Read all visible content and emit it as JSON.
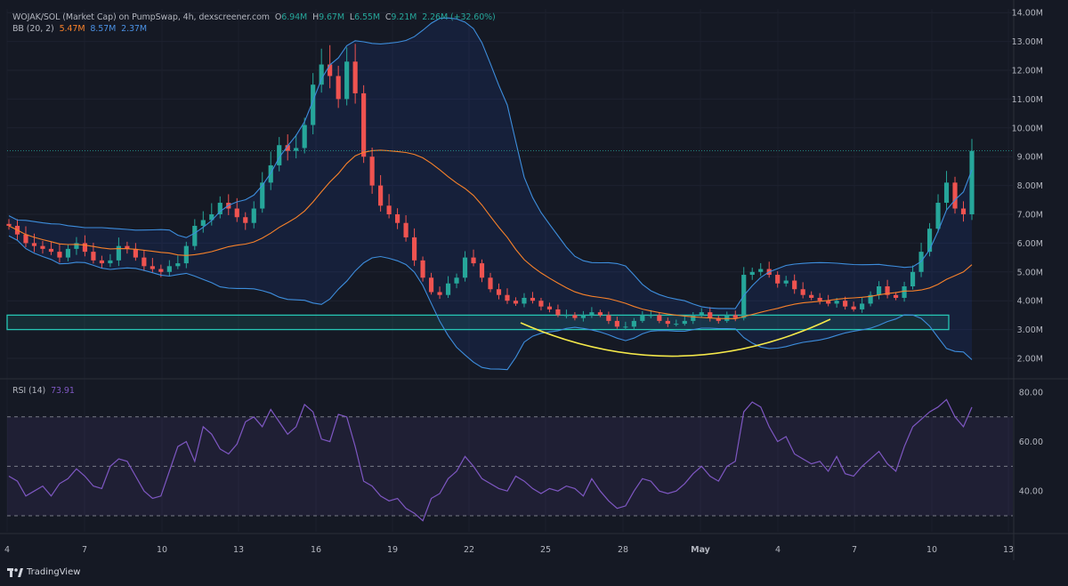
{
  "header": {
    "symbol": "WOJAK/SOL (Market Cap) on PumpSwap, 4h, dexscreener.com",
    "o_label": "O",
    "o_value": "6.94M",
    "h_label": "H",
    "h_value": "9.67M",
    "l_label": "L",
    "l_value": "6.55M",
    "c_label": "C",
    "c_value": "9.21M",
    "change": "2.26M (+32.60%)",
    "bb_label": "BB (20, 2)",
    "bb_basis": "5.47M",
    "bb_upper": "8.57M",
    "bb_lower": "2.37M",
    "rsi_label": "RSI (14)",
    "rsi_value": "73.91"
  },
  "brand": "TradingView",
  "colors": {
    "up": "#26a69a",
    "down": "#ef5350",
    "basis": "#f7812a",
    "band": "#3d8ddc",
    "rsi": "#7e57c2",
    "zone": "#26c6b4",
    "arc": "#f5e94a"
  },
  "chart_data": [
    {
      "type": "candlestick",
      "title": "WOJAK/SOL (Market Cap) on PumpSwap, 4h, dexscreener.com",
      "y_ticks": [
        "2.00M",
        "3.00M",
        "4.00M",
        "5.00M",
        "6.00M",
        "7.00M",
        "8.00M",
        "9.00M",
        "10.00M",
        "11.00M",
        "12.00M",
        "13.00M",
        "14.00M"
      ],
      "x_ticks": [
        "4",
        "7",
        "10",
        "13",
        "16",
        "19",
        "22",
        "25",
        "28",
        "May",
        "4",
        "7",
        "10",
        "13"
      ],
      "ylim": [
        1.5,
        14.0
      ],
      "price_line": 9.21,
      "support_zone": [
        3.0,
        3.5
      ],
      "series": [
        {
          "name": "Close (M)",
          "values": [
            6.6,
            6.3,
            6.0,
            5.9,
            5.8,
            5.7,
            5.5,
            5.8,
            6.0,
            5.7,
            5.4,
            5.3,
            5.4,
            5.9,
            5.8,
            5.5,
            5.2,
            5.1,
            5.0,
            5.2,
            5.3,
            5.9,
            6.6,
            6.8,
            7.0,
            7.4,
            7.2,
            6.9,
            6.7,
            7.2,
            8.1,
            8.7,
            9.4,
            9.2,
            9.3,
            10.1,
            11.5,
            12.2,
            11.8,
            11.0,
            12.3,
            11.2,
            9.0,
            8.0,
            7.3,
            7.0,
            6.7,
            6.2,
            5.4,
            4.8,
            4.3,
            4.2,
            4.6,
            4.8,
            5.5,
            5.3,
            4.8,
            4.4,
            4.2,
            4.0,
            3.9,
            4.1,
            4.0,
            3.8,
            3.7,
            3.5,
            3.5,
            3.4,
            3.5,
            3.6,
            3.5,
            3.3,
            3.1,
            3.1,
            3.3,
            3.5,
            3.5,
            3.3,
            3.2,
            3.2,
            3.3,
            3.5,
            3.6,
            3.4,
            3.3,
            3.5,
            3.4,
            4.9,
            5.0,
            5.1,
            4.9,
            4.6,
            4.7,
            4.4,
            4.2,
            4.1,
            4.0,
            3.9,
            4.0,
            3.8,
            3.7,
            3.9,
            4.2,
            4.5,
            4.2,
            4.1,
            4.5,
            5.0,
            5.7,
            6.5,
            7.4,
            8.1,
            7.2,
            7.0,
            9.2
          ]
        },
        {
          "name": "BB (20, 2)",
          "values": [
            5.47,
            8.57,
            2.37
          ]
        }
      ]
    },
    {
      "type": "line",
      "title": "RSI (14)",
      "y_ticks": [
        "40.00",
        "60.00",
        "80.00"
      ],
      "ylim": [
        25,
        82
      ],
      "bands": [
        30,
        50,
        70
      ],
      "series": [
        {
          "name": "RSI (14)",
          "values": [
            46,
            44,
            38,
            40,
            42,
            38,
            43,
            45,
            49,
            46,
            42,
            41,
            50,
            53,
            52,
            46,
            40,
            37,
            38,
            48,
            58,
            60,
            52,
            66,
            63,
            57,
            55,
            59,
            68,
            70,
            66,
            73,
            68,
            63,
            66,
            75,
            72,
            61,
            60,
            71,
            70,
            58,
            44,
            42,
            38,
            36,
            37,
            33,
            31,
            28,
            37,
            39,
            45,
            48,
            54,
            50,
            45,
            43,
            41,
            40,
            46,
            44,
            41,
            39,
            41,
            40,
            42,
            41,
            38,
            45,
            40,
            36,
            33,
            34,
            40,
            45,
            44,
            40,
            39,
            40,
            43,
            47,
            50,
            46,
            44,
            50,
            52,
            72,
            76,
            74,
            66,
            60,
            62,
            55,
            53,
            51,
            52,
            48,
            54,
            47,
            46,
            50,
            53,
            56,
            51,
            48,
            58,
            66,
            69,
            72,
            74,
            77,
            70,
            66,
            73.91
          ]
        }
      ]
    }
  ]
}
